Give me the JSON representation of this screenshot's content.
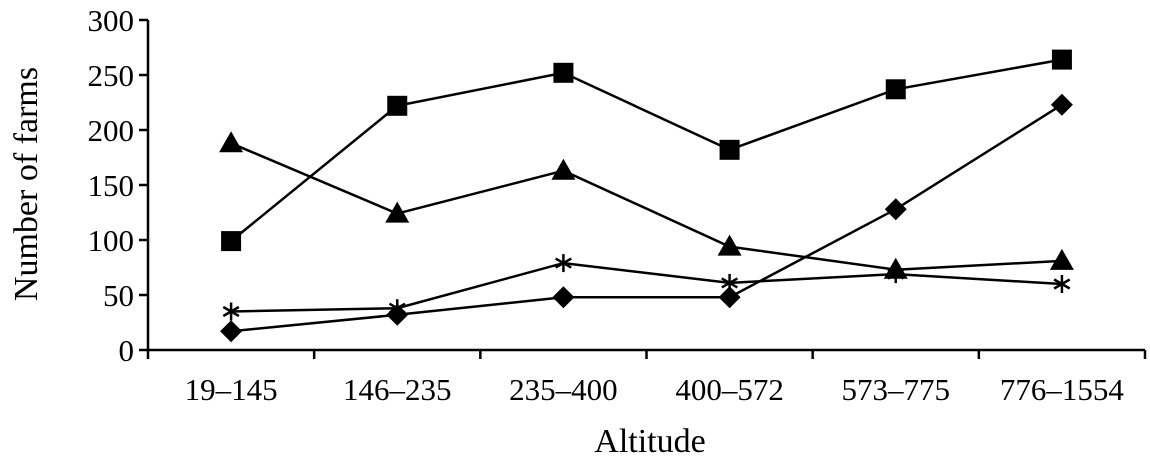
{
  "chart_data": {
    "type": "line",
    "title": "",
    "xlabel": "Altitude",
    "ylabel": "Number of farms",
    "categories": [
      "19–145",
      "146–235",
      "235–400",
      "400–572",
      "573–775",
      "776–1554"
    ],
    "ylim": [
      0,
      300
    ],
    "yticks": [
      "0",
      "50",
      "100",
      "150",
      "200",
      "250",
      "300"
    ],
    "grid": false,
    "legend": "none",
    "series": [
      {
        "marker": "diamond",
        "values": [
          17,
          32,
          48,
          48,
          128,
          223
        ]
      },
      {
        "marker": "square",
        "values": [
          99,
          222,
          252,
          182,
          237,
          264
        ]
      },
      {
        "marker": "triangle",
        "values": [
          188,
          124,
          163,
          94,
          73,
          81
        ]
      },
      {
        "marker": "asterisk",
        "values": [
          35,
          38,
          79,
          61,
          69,
          60
        ]
      }
    ],
    "color": "#000000"
  }
}
